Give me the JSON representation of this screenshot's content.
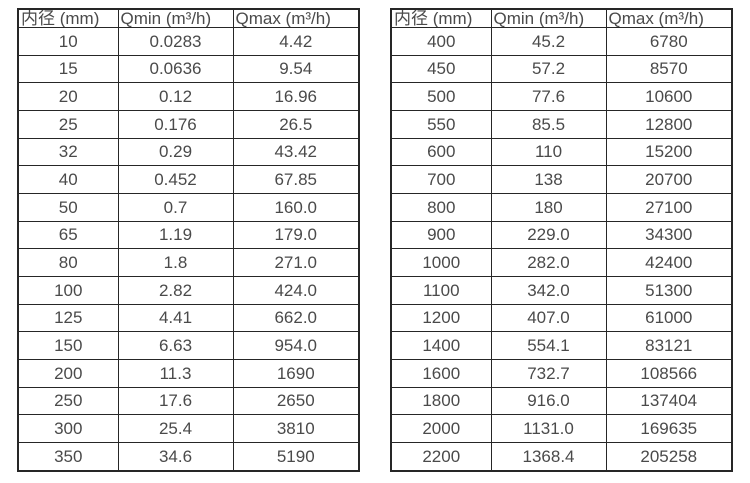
{
  "colors": {
    "background": "#ffffff",
    "table_border": "#262626",
    "text": "#4a4a4a"
  },
  "tables": [
    {
      "name": "small-diameter-flow-table",
      "headers": [
        "内径 (mm)",
        "Qmin (m³/h)",
        "Qmax (m³/h)"
      ],
      "rows": [
        [
          "10",
          "0.0283",
          "4.42"
        ],
        [
          "15",
          "0.0636",
          "9.54"
        ],
        [
          "20",
          "0.12",
          "16.96"
        ],
        [
          "25",
          "0.176",
          "26.5"
        ],
        [
          "32",
          "0.29",
          "43.42"
        ],
        [
          "40",
          "0.452",
          "67.85"
        ],
        [
          "50",
          "0.7",
          "160.0"
        ],
        [
          "65",
          "1.19",
          "179.0"
        ],
        [
          "80",
          "1.8",
          "271.0"
        ],
        [
          "100",
          "2.82",
          "424.0"
        ],
        [
          "125",
          "4.41",
          "662.0"
        ],
        [
          "150",
          "6.63",
          "954.0"
        ],
        [
          "200",
          "11.3",
          "1690"
        ],
        [
          "250",
          "17.6",
          "2650"
        ],
        [
          "300",
          "25.4",
          "3810"
        ],
        [
          "350",
          "34.6",
          "5190"
        ]
      ]
    },
    {
      "name": "large-diameter-flow-table",
      "headers": [
        "内径 (mm)",
        "Qmin (m³/h)",
        "Qmax (m³/h)"
      ],
      "rows": [
        [
          "400",
          "45.2",
          "6780"
        ],
        [
          "450",
          "57.2",
          "8570"
        ],
        [
          "500",
          "77.6",
          "10600"
        ],
        [
          "550",
          "85.5",
          "12800"
        ],
        [
          "600",
          "110",
          "15200"
        ],
        [
          "700",
          "138",
          "20700"
        ],
        [
          "800",
          "180",
          "27100"
        ],
        [
          "900",
          "229.0",
          "34300"
        ],
        [
          "1000",
          "282.0",
          "42400"
        ],
        [
          "1100",
          "342.0",
          "51300"
        ],
        [
          "1200",
          "407.0",
          "61000"
        ],
        [
          "1400",
          "554.1",
          "83121"
        ],
        [
          "1600",
          "732.7",
          "108566"
        ],
        [
          "1800",
          "916.0",
          "137404"
        ],
        [
          "2000",
          "1131.0",
          "169635"
        ],
        [
          "2200",
          "1368.4",
          "205258"
        ]
      ]
    }
  ]
}
